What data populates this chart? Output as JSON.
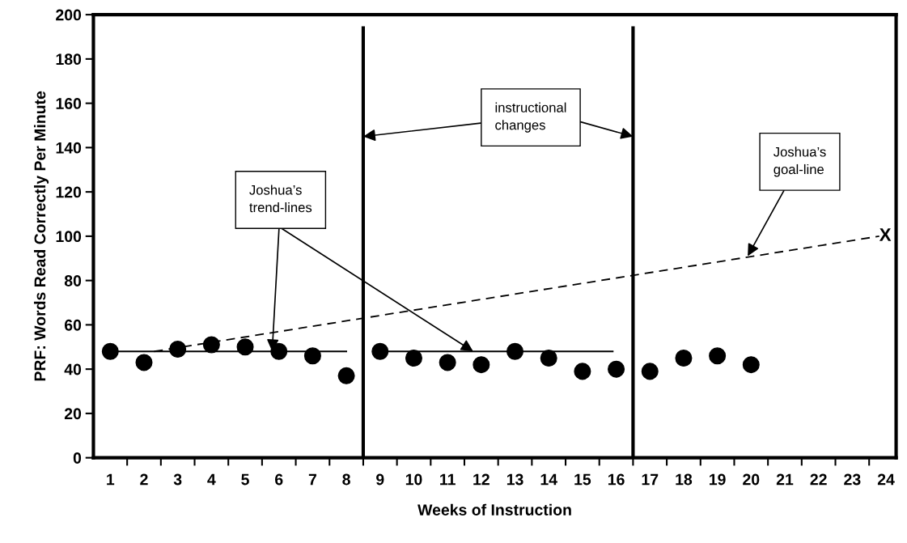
{
  "chart_data": {
    "type": "scatter",
    "xlabel": "Weeks of Instruction",
    "ylabel": "PRF: Words Read Correctly Per Minute",
    "xlim": [
      0.5,
      24.3
    ],
    "ylim": [
      0,
      200
    ],
    "yticks": [
      0,
      20,
      40,
      60,
      80,
      100,
      120,
      140,
      160,
      180,
      200
    ],
    "xticks": [
      {
        "value": 1,
        "label": "1"
      },
      {
        "value": 2,
        "label": "2"
      },
      {
        "value": 3,
        "label": "3"
      },
      {
        "value": 4,
        "label": "4"
      },
      {
        "value": 5,
        "label": "5"
      },
      {
        "value": 6,
        "label": "6"
      },
      {
        "value": 7,
        "label": "7"
      },
      {
        "value": 8,
        "label": "8"
      },
      {
        "value": 9,
        "label": "9"
      },
      {
        "value": 10,
        "label": "10"
      },
      {
        "value": 11,
        "label": "11"
      },
      {
        "value": 12,
        "label": "12"
      },
      {
        "value": 13,
        "label": "13"
      },
      {
        "value": 14,
        "label": "14"
      },
      {
        "value": 15,
        "label": "15"
      },
      {
        "value": 16,
        "label": "16"
      },
      {
        "value": 17,
        "label": "17"
      },
      {
        "value": 18,
        "label": "18"
      },
      {
        "value": 19,
        "label": "19"
      },
      {
        "value": 20,
        "label": "20"
      },
      {
        "value": 21,
        "label": "21"
      },
      {
        "value": 22,
        "label": "22"
      },
      {
        "value": 23,
        "label": "23"
      },
      {
        "value": 24,
        "label": "24"
      },
      {
        "value": 1.5,
        "label": null
      },
      {
        "value": 2.5,
        "label": null
      },
      {
        "value": 3.5,
        "label": null
      },
      {
        "value": 4.5,
        "label": null
      },
      {
        "value": 5.5,
        "label": null
      },
      {
        "value": 6.5,
        "label": null
      },
      {
        "value": 7.5,
        "label": null
      },
      {
        "value": 8.5,
        "label": null
      },
      {
        "value": 9.5,
        "label": null
      },
      {
        "value": 10.5,
        "label": null
      },
      {
        "value": 11.5,
        "label": null
      },
      {
        "value": 12.5,
        "label": null
      },
      {
        "value": 13.5,
        "label": null
      },
      {
        "value": 14.5,
        "label": null
      },
      {
        "value": 15.5,
        "label": null
      },
      {
        "value": 16.5,
        "label": null
      },
      {
        "value": 17.5,
        "label": null
      },
      {
        "value": 18.5,
        "label": null
      },
      {
        "value": 19.5,
        "label": null
      },
      {
        "value": 20.5,
        "label": null
      },
      {
        "value": 21.5,
        "label": null
      },
      {
        "value": 22.5,
        "label": null
      },
      {
        "value": 23.5,
        "label": null
      }
    ],
    "series": [
      {
        "color": "#000000",
        "marker": "circle",
        "x": [
          1,
          2,
          3,
          4,
          5,
          6,
          7,
          8,
          9,
          10,
          11,
          12,
          13,
          14,
          15,
          16,
          17,
          18,
          19,
          20
        ],
        "values": [
          48,
          43,
          49,
          51,
          50,
          48,
          46,
          37,
          48,
          45,
          43,
          42,
          48,
          45,
          39,
          40,
          39,
          45,
          46,
          42
        ]
      },
      {
        "type": "line",
        "color": "#000000",
        "line_style": "solid",
        "x": [
          1,
          8
        ],
        "values": [
          48,
          48
        ]
      },
      {
        "type": "line",
        "color": "#000000",
        "line_style": "solid",
        "x": [
          9,
          15.9
        ],
        "values": [
          48,
          48
        ]
      },
      {
        "type": "line",
        "color": "#000000",
        "line_style": "dashed",
        "x": [
          2.3,
          23.8
        ],
        "values": [
          48,
          100
        ]
      }
    ],
    "ref_lines": [
      {
        "axis": "x",
        "value": 8.5,
        "color": "#000000"
      },
      {
        "axis": "x",
        "value": 16.5,
        "color": "#000000"
      }
    ],
    "annotations": [
      {
        "text": "Joshua’s\ntrend-lines",
        "x": 5.8,
        "y": 48
      },
      {
        "text": "instructional\nchanges",
        "x": 8.5,
        "y": 145
      },
      {
        "text": "Joshua’s\ngoal-line",
        "x": 19.9,
        "y": 91
      },
      "X"
    ],
    "grid": false,
    "legend": false
  }
}
